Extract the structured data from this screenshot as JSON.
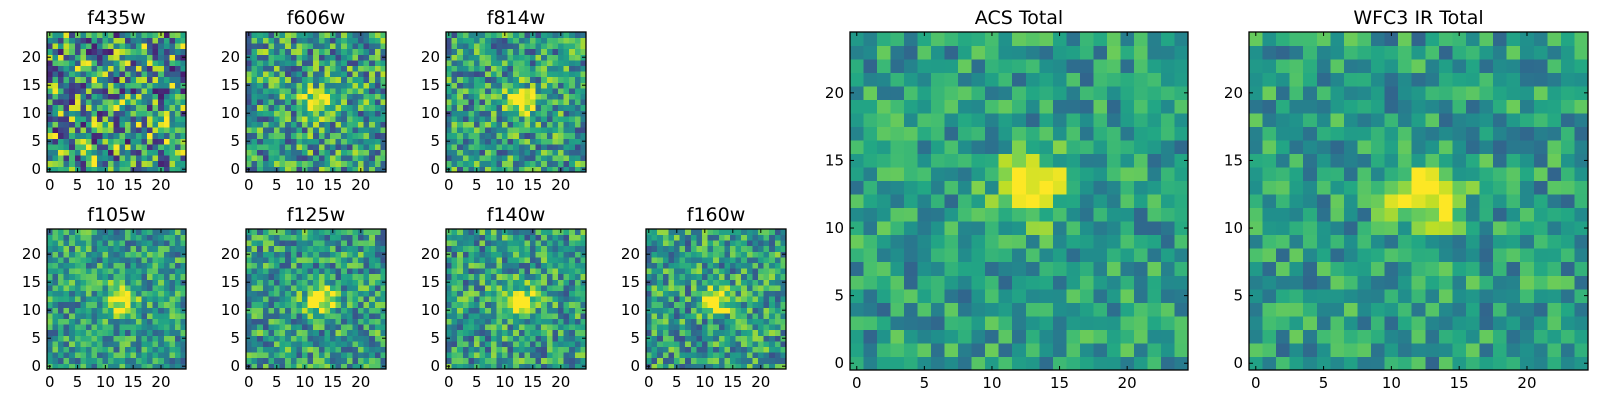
{
  "chart_data": [
    {
      "type": "heatmap",
      "title": "f435w",
      "grid_size": 25,
      "xlim": [
        -0.5,
        24.5
      ],
      "ylim": [
        -0.5,
        24.5
      ],
      "xticks": [
        0,
        5,
        10,
        15,
        20
      ],
      "yticks": [
        0,
        5,
        10,
        15,
        20
      ],
      "colormap": "viridis",
      "grid": false,
      "source_center": null,
      "noise_level": 0.95,
      "seed": 11
    },
    {
      "type": "heatmap",
      "title": "f606w",
      "grid_size": 25,
      "xlim": [
        -0.5,
        24.5
      ],
      "ylim": [
        -0.5,
        24.5
      ],
      "xticks": [
        0,
        5,
        10,
        15,
        20
      ],
      "yticks": [
        0,
        5,
        10,
        15,
        20
      ],
      "colormap": "viridis",
      "grid": false,
      "source_center": [
        12.5,
        12.0
      ],
      "noise_level": 0.7,
      "seed": 23
    },
    {
      "type": "heatmap",
      "title": "f814w",
      "grid_size": 25,
      "xlim": [
        -0.5,
        24.5
      ],
      "ylim": [
        -0.5,
        24.5
      ],
      "xticks": [
        0,
        5,
        10,
        15,
        20
      ],
      "yticks": [
        0,
        5,
        10,
        15,
        20
      ],
      "colormap": "viridis",
      "grid": false,
      "source_center": [
        13.0,
        12.0
      ],
      "noise_level": 0.65,
      "seed": 37
    },
    {
      "type": "heatmap",
      "title": "f105w",
      "grid_size": 25,
      "xlim": [
        -0.5,
        24.5
      ],
      "ylim": [
        -0.5,
        24.5
      ],
      "xticks": [
        0,
        5,
        10,
        15,
        20
      ],
      "yticks": [
        0,
        5,
        10,
        15,
        20
      ],
      "colormap": "viridis",
      "grid": false,
      "source_center": [
        13.0,
        12.0
      ],
      "noise_level": 0.55,
      "seed": 41
    },
    {
      "type": "heatmap",
      "title": "f125w",
      "grid_size": 25,
      "xlim": [
        -0.5,
        24.5
      ],
      "ylim": [
        -0.5,
        24.5
      ],
      "xticks": [
        0,
        5,
        10,
        15,
        20
      ],
      "yticks": [
        0,
        5,
        10,
        15,
        20
      ],
      "colormap": "viridis",
      "grid": false,
      "source_center": [
        13.0,
        12.0
      ],
      "noise_level": 0.6,
      "seed": 53
    },
    {
      "type": "heatmap",
      "title": "f140w",
      "grid_size": 25,
      "xlim": [
        -0.5,
        24.5
      ],
      "ylim": [
        -0.5,
        24.5
      ],
      "xticks": [
        0,
        5,
        10,
        15,
        20
      ],
      "yticks": [
        0,
        5,
        10,
        15,
        20
      ],
      "colormap": "viridis",
      "grid": false,
      "source_center": [
        13.0,
        12.0
      ],
      "noise_level": 0.6,
      "seed": 67
    },
    {
      "type": "heatmap",
      "title": "f160w",
      "grid_size": 25,
      "xlim": [
        -0.5,
        24.5
      ],
      "ylim": [
        -0.5,
        24.5
      ],
      "xticks": [
        0,
        5,
        10,
        15,
        20
      ],
      "yticks": [
        0,
        5,
        10,
        15,
        20
      ],
      "colormap": "viridis",
      "grid": false,
      "source_center": [
        12.5,
        12.0
      ],
      "noise_level": 0.6,
      "seed": 79
    },
    {
      "type": "heatmap",
      "title": "ACS Total",
      "grid_size": 25,
      "xlim": [
        -0.5,
        24.5
      ],
      "ylim": [
        -0.5,
        24.5
      ],
      "xticks": [
        0,
        5,
        10,
        15,
        20
      ],
      "yticks": [
        0,
        5,
        10,
        15,
        20
      ],
      "colormap": "viridis",
      "grid": false,
      "source_center": [
        13.0,
        13.0
      ],
      "noise_level": 0.45,
      "seed": 83
    },
    {
      "type": "heatmap",
      "title": "WFC3 IR Total",
      "grid_size": 25,
      "xlim": [
        -0.5,
        24.5
      ],
      "ylim": [
        -0.5,
        24.5
      ],
      "xticks": [
        0,
        5,
        10,
        15,
        20
      ],
      "yticks": [
        0,
        5,
        10,
        15,
        20
      ],
      "colormap": "viridis",
      "grid": false,
      "source_center": [
        12.5,
        12.5
      ],
      "noise_level": 0.45,
      "seed": 97
    }
  ]
}
